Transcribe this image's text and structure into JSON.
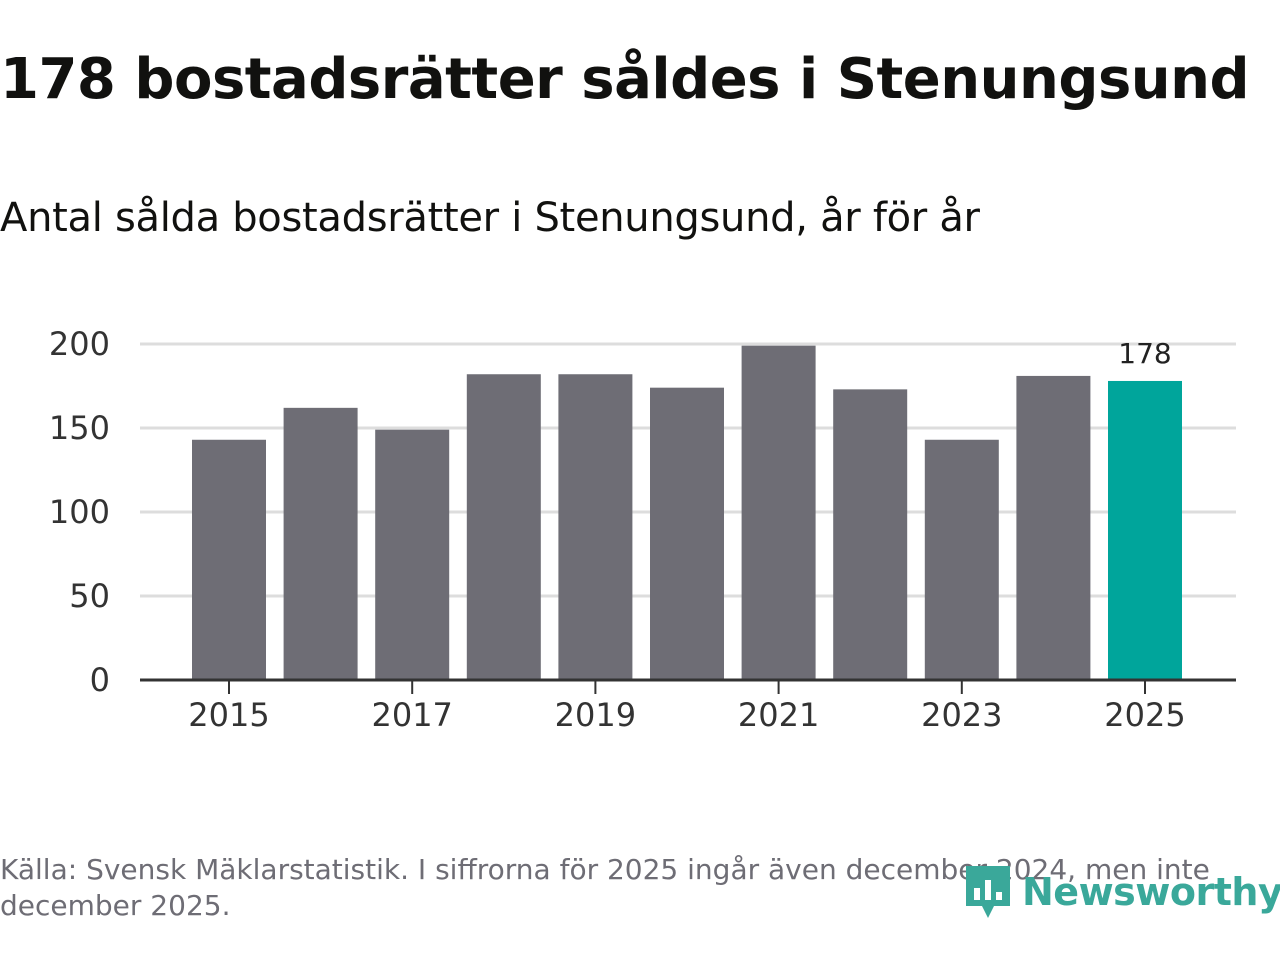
{
  "header": {
    "title": "178 bostadsrätter såldes i Stenungsund",
    "subtitle": "Antal sålda bostadsrätter i Stenungsund, år för år"
  },
  "footer": {
    "source": "Källa: Svensk Mäklarstatistik. I siffrorna för 2025 ingår även december 2024, men inte december 2025.",
    "brand": "Newsworthy",
    "brand_icon": "bar-chart-pin-icon"
  },
  "colors": {
    "bar": "#6e6d75",
    "highlight": "#00a59b",
    "grid": "#dddddd",
    "axis": "#333333",
    "brand": "#3aa89a"
  },
  "chart_data": {
    "type": "bar",
    "title": "178 bostadsrätter såldes i Stenungsund",
    "subtitle": "Antal sålda bostadsrätter i Stenungsund, år för år",
    "xlabel": "",
    "ylabel": "",
    "categories": [
      "2015",
      "2016",
      "2017",
      "2018",
      "2019",
      "2020",
      "2021",
      "2022",
      "2023",
      "2024",
      "2025"
    ],
    "values": [
      143,
      162,
      149,
      182,
      182,
      174,
      199,
      173,
      143,
      181,
      178
    ],
    "highlight_index": 10,
    "highlight_label": "178",
    "x_tick_labels": [
      "2015",
      "2017",
      "2019",
      "2021",
      "2023",
      "2025"
    ],
    "y_ticks": [
      0,
      50,
      100,
      150,
      200
    ],
    "ylim": [
      0,
      200
    ],
    "grid": true
  }
}
